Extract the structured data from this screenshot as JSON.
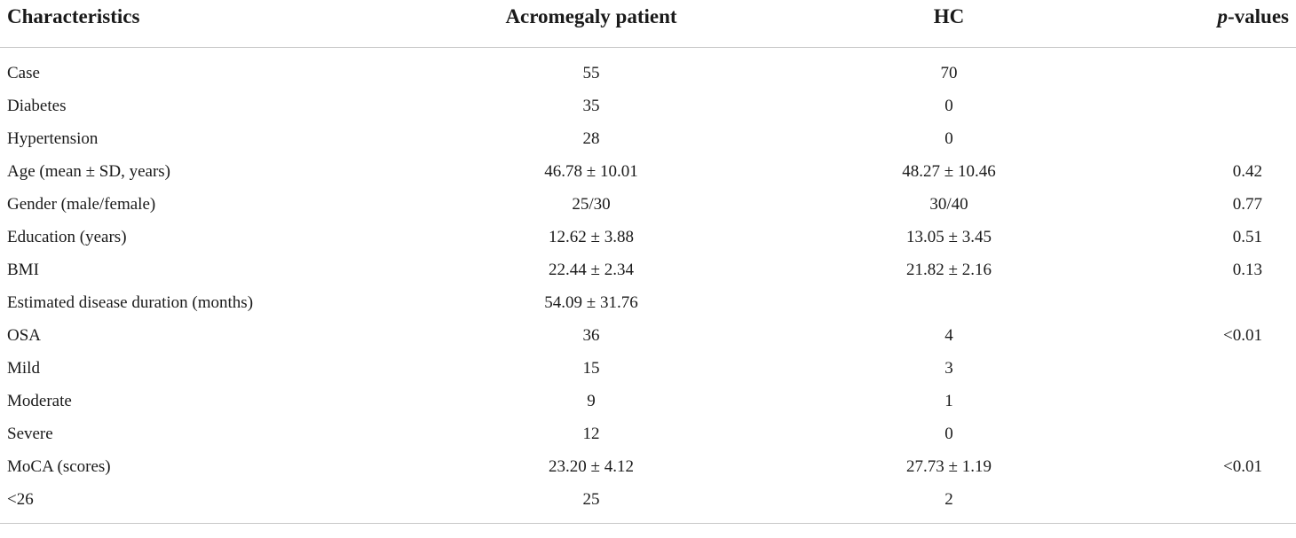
{
  "table": {
    "headers": {
      "characteristics": "Characteristics",
      "acromegaly": "Acromegaly patient",
      "hc": "HC",
      "p_prefix": "p",
      "p_suffix": "-values"
    },
    "rows": [
      {
        "label": "Case",
        "acromegaly": "55",
        "hc": "70",
        "p": ""
      },
      {
        "label": "Diabetes",
        "acromegaly": "35",
        "hc": "0",
        "p": ""
      },
      {
        "label": "Hypertension",
        "acromegaly": "28",
        "hc": "0",
        "p": ""
      },
      {
        "label": "Age (mean ± SD, years)",
        "acromegaly": "46.78 ± 10.01",
        "hc": "48.27 ± 10.46",
        "p": "0.42"
      },
      {
        "label": "Gender (male/female)",
        "acromegaly": "25/30",
        "hc": "30/40",
        "p": "0.77"
      },
      {
        "label": "Education (years)",
        "acromegaly": "12.62 ± 3.88",
        "hc": "13.05 ± 3.45",
        "p": "0.51"
      },
      {
        "label": "BMI",
        "acromegaly": "22.44 ± 2.34",
        "hc": "21.82 ± 2.16",
        "p": "0.13"
      },
      {
        "label": "Estimated disease duration (months)",
        "acromegaly": "54.09 ± 31.76",
        "hc": "",
        "p": ""
      },
      {
        "label": "OSA",
        "acromegaly": "36",
        "hc": "4",
        "p": "<0.01"
      },
      {
        "label": "Mild",
        "acromegaly": "15",
        "hc": "3",
        "p": ""
      },
      {
        "label": "Moderate",
        "acromegaly": "9",
        "hc": "1",
        "p": ""
      },
      {
        "label": "Severe",
        "acromegaly": "12",
        "hc": "0",
        "p": ""
      },
      {
        "label": "MoCA (scores)",
        "acromegaly": "23.20 ± 4.12",
        "hc": "27.73 ± 1.19",
        "p": "<0.01"
      },
      {
        "label": "<26",
        "acromegaly": "25",
        "hc": "2",
        "p": ""
      }
    ]
  }
}
